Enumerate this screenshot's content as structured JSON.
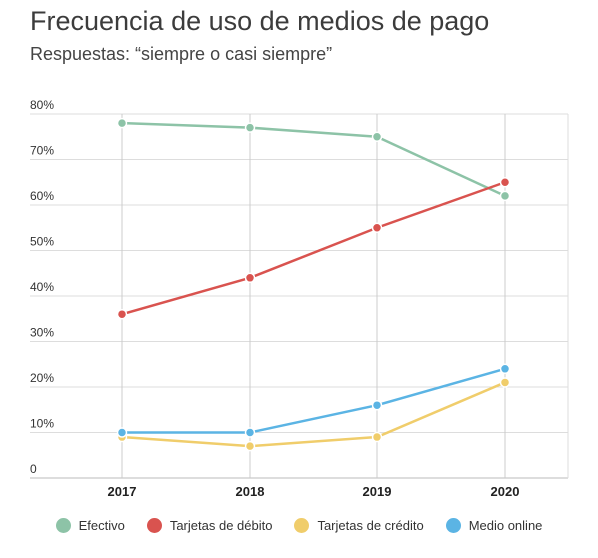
{
  "header": {
    "title": "Frecuencia de uso de medios de pago",
    "subtitle": "Respuestas: “siempre o casi siempre”"
  },
  "chart_data": {
    "type": "line",
    "title": "Frecuencia de uso de medios de pago",
    "subtitle": "Respuestas: “siempre o casi siempre”",
    "x": [
      "2017",
      "2018",
      "2019",
      "2020"
    ],
    "ylim": [
      0,
      80
    ],
    "yticks": [
      0,
      10,
      20,
      30,
      40,
      50,
      60,
      70,
      80
    ],
    "ytick_labels": [
      "0",
      "10%",
      "20%",
      "30%",
      "40%",
      "50%",
      "60%",
      "70%",
      "80%"
    ],
    "grid": true,
    "legend_position": "bottom",
    "series": [
      {
        "name": "Efectivo",
        "color": "#8dc3a7",
        "values": [
          78,
          77,
          75,
          62
        ]
      },
      {
        "name": "Tarjetas de débito",
        "color": "#d9534f",
        "values": [
          36,
          44,
          55,
          65
        ]
      },
      {
        "name": "Tarjetas de crédito",
        "color": "#f0cd6b",
        "values": [
          9,
          7,
          9,
          21
        ]
      },
      {
        "name": "Medio online",
        "color": "#5bb4e4",
        "values": [
          10,
          10,
          16,
          24
        ]
      }
    ]
  }
}
